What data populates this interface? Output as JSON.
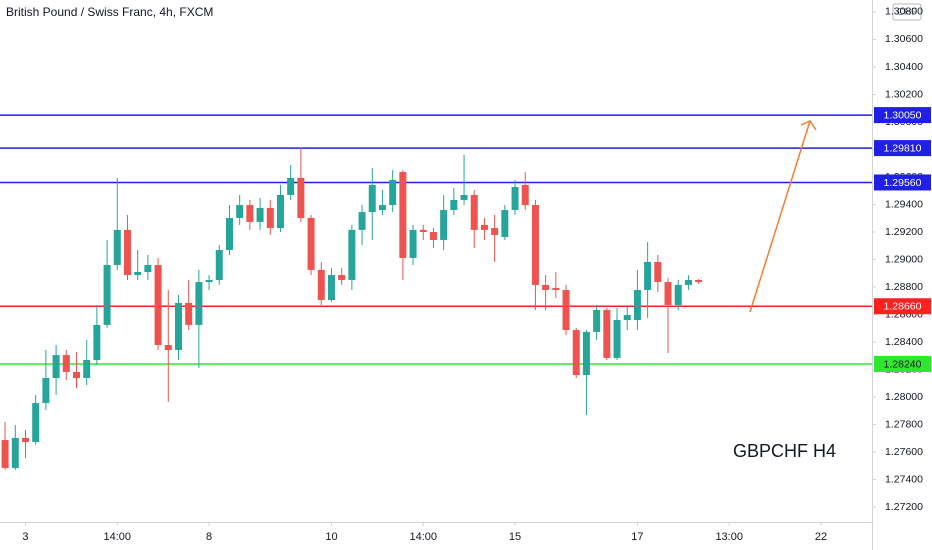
{
  "chart_data": {
    "type": "candlestick",
    "title": "British Pound / Swiss Franc, 4h, FXCM",
    "currency": "CHF",
    "annotation": "GBPCHF H4",
    "up_color": "#26a69a",
    "down_color": "#ef5350",
    "xlim": [
      -0.5,
      85
    ],
    "xticks": [
      {
        "value": 2,
        "label": "3"
      },
      {
        "value": 11,
        "label": "14:00"
      },
      {
        "value": 20,
        "label": "8"
      },
      {
        "value": 32,
        "label": "10"
      },
      {
        "value": 41,
        "label": "14:00"
      },
      {
        "value": 50,
        "label": "15"
      },
      {
        "value": 62,
        "label": "17"
      },
      {
        "value": 71,
        "label": "13:00"
      },
      {
        "value": 80,
        "label": "22"
      }
    ],
    "ylim": [
      1.27091,
      1.30887
    ],
    "yticks": [
      {
        "value": 1.308,
        "label": "1.30800"
      },
      {
        "value": 1.306,
        "label": "1.30600"
      },
      {
        "value": 1.304,
        "label": "1.30400"
      },
      {
        "value": 1.302,
        "label": "1.30200"
      },
      {
        "value": 1.3,
        "label": "1.30000"
      },
      {
        "value": 1.298,
        "label": "1.29800"
      },
      {
        "value": 1.296,
        "label": "1.29600"
      },
      {
        "value": 1.294,
        "label": "1.29400"
      },
      {
        "value": 1.292,
        "label": "1.29200"
      },
      {
        "value": 1.29,
        "label": "1.29000"
      },
      {
        "value": 1.288,
        "label": "1.28800"
      },
      {
        "value": 1.286,
        "label": "1.28600"
      },
      {
        "value": 1.284,
        "label": "1.28400"
      },
      {
        "value": 1.282,
        "label": "1.28200"
      },
      {
        "value": 1.28,
        "label": "1.28000"
      },
      {
        "value": 1.278,
        "label": "1.27800"
      },
      {
        "value": 1.276,
        "label": "1.27600"
      },
      {
        "value": 1.274,
        "label": "1.27400"
      },
      {
        "value": 1.272,
        "label": "1.27200"
      }
    ],
    "levels": [
      {
        "value": 1.3005,
        "label": "1.30050",
        "color": "#1f1fe6"
      },
      {
        "value": 1.2981,
        "label": "1.29810",
        "color": "#1f1fe6"
      },
      {
        "value": 1.2956,
        "label": "1.29560",
        "color": "#1f1fe6"
      },
      {
        "value": 1.2866,
        "label": "1.28660",
        "color": "#ff2020"
      },
      {
        "value": 1.2824,
        "label": "1.28240",
        "color": "#2ee82e"
      }
    ],
    "ohlc": [
      [
        1.27687,
        1.27818,
        1.27469,
        1.27484
      ],
      [
        1.27484,
        1.27796,
        1.27469,
        1.27702
      ],
      [
        1.27702,
        1.2776,
        1.27556,
        1.27673
      ],
      [
        1.27673,
        1.28015,
        1.27651,
        1.27956
      ],
      [
        1.27956,
        1.28342,
        1.27905,
        1.28138
      ],
      [
        1.28138,
        1.28378,
        1.28015,
        1.28305
      ],
      [
        1.28305,
        1.28342,
        1.28124,
        1.28182
      ],
      [
        1.28182,
        1.28327,
        1.28065,
        1.28138
      ],
      [
        1.28138,
        1.28415,
        1.28087,
        1.28269
      ],
      [
        1.28269,
        1.28669,
        1.28233,
        1.28524
      ],
      [
        1.28524,
        1.29142,
        1.28502,
        1.2896
      ],
      [
        1.2896,
        1.29593,
        1.28924,
        1.29215
      ],
      [
        1.29215,
        1.29324,
        1.28851,
        1.28887
      ],
      [
        1.28887,
        1.29069,
        1.28851,
        1.28909
      ],
      [
        1.28909,
        1.29033,
        1.28851,
        1.2896
      ],
      [
        1.2896,
        1.29011,
        1.28342,
        1.28378
      ],
      [
        1.28378,
        1.28778,
        1.27964,
        1.28342
      ],
      [
        1.28342,
        1.28742,
        1.28269,
        1.28684
      ],
      [
        1.28684,
        1.28851,
        1.28487,
        1.28524
      ],
      [
        1.28524,
        1.28924,
        1.28211,
        1.28836
      ],
      [
        1.28836,
        1.28887,
        1.28778,
        1.28851
      ],
      [
        1.28851,
        1.29105,
        1.28815,
        1.29069
      ],
      [
        1.29069,
        1.29396,
        1.29033,
        1.29302
      ],
      [
        1.29302,
        1.29469,
        1.29251,
        1.29396
      ],
      [
        1.29396,
        1.29433,
        1.29215,
        1.29273
      ],
      [
        1.29273,
        1.29447,
        1.29215,
        1.29375
      ],
      [
        1.29375,
        1.29433,
        1.29178,
        1.29229
      ],
      [
        1.29229,
        1.29542,
        1.292,
        1.29469
      ],
      [
        1.29469,
        1.29687,
        1.29433,
        1.29593
      ],
      [
        1.29593,
        1.29811,
        1.29273,
        1.29302
      ],
      [
        1.29302,
        1.29324,
        1.28887,
        1.28924
      ],
      [
        1.28924,
        1.28982,
        1.28669,
        1.28705
      ],
      [
        1.28705,
        1.28938,
        1.28691,
        1.28887
      ],
      [
        1.28887,
        1.28938,
        1.28815,
        1.28851
      ],
      [
        1.28851,
        1.29251,
        1.28778,
        1.29215
      ],
      [
        1.29215,
        1.29396,
        1.29105,
        1.29345
      ],
      [
        1.29345,
        1.29665,
        1.29142,
        1.29542
      ],
      [
        1.2936,
        1.29505,
        1.29324,
        1.29396
      ],
      [
        1.29396,
        1.29651,
        1.29345,
        1.29578
      ],
      [
        1.29636,
        1.29651,
        1.28851,
        1.29011
      ],
      [
        1.29011,
        1.29251,
        1.2896,
        1.29215
      ],
      [
        1.29215,
        1.29251,
        1.29142,
        1.292
      ],
      [
        1.292,
        1.29229,
        1.29084,
        1.29142
      ],
      [
        1.29142,
        1.29469,
        1.29069,
        1.2936
      ],
      [
        1.2936,
        1.2952,
        1.29324,
        1.29433
      ],
      [
        1.29433,
        1.2976,
        1.29396,
        1.29469
      ],
      [
        1.29469,
        1.29505,
        1.29084,
        1.29215
      ],
      [
        1.29251,
        1.29302,
        1.29142,
        1.29215
      ],
      [
        1.29229,
        1.29324,
        1.28982,
        1.29178
      ],
      [
        1.29164,
        1.29396,
        1.29142,
        1.2936
      ],
      [
        1.2936,
        1.29578,
        1.29324,
        1.29527
      ],
      [
        1.29542,
        1.29636,
        1.2936,
        1.29396
      ],
      [
        1.29396,
        1.29433,
        1.28633,
        1.28815
      ],
      [
        1.28815,
        1.28887,
        1.28633,
        1.28778
      ],
      [
        1.28793,
        1.28909,
        1.2872,
        1.28778
      ],
      [
        1.28778,
        1.28815,
        1.28451,
        1.28487
      ],
      [
        1.28487,
        1.28502,
        1.28138,
        1.2816
      ],
      [
        1.2816,
        1.28487,
        1.27869,
        1.28473
      ],
      [
        1.28473,
        1.28669,
        1.28415,
        1.28633
      ],
      [
        1.28633,
        1.28647,
        1.28269,
        1.28284
      ],
      [
        1.28284,
        1.28647,
        1.28269,
        1.2856
      ],
      [
        1.2856,
        1.28669,
        1.28487,
        1.28596
      ],
      [
        1.2856,
        1.28924,
        1.28487,
        1.28778
      ],
      [
        1.28778,
        1.29127,
        1.28575,
        1.28982
      ],
      [
        1.28982,
        1.29033,
        1.28764,
        1.28836
      ],
      [
        1.28836,
        1.28865,
        1.2832,
        1.28669
      ],
      [
        1.28669,
        1.28851,
        1.28633,
        1.28815
      ],
      [
        1.28815,
        1.28887,
        1.28778,
        1.28851
      ],
      [
        1.28851,
        1.28858,
        1.28822,
        1.28836
      ]
    ]
  }
}
